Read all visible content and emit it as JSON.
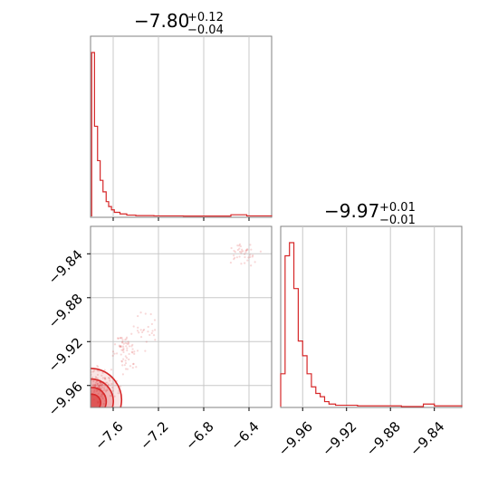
{
  "chart_data": [
    {
      "type": "histogram",
      "panel": "marginal-x",
      "title": {
        "main": "−7.80",
        "sup": "+0.12",
        "sub": "−0.04"
      },
      "color": "#d62728",
      "grid": true,
      "xlim": [
        -7.8,
        -6.2
      ],
      "bins": [
        {
          "x0": -7.79,
          "x1": -7.765,
          "h": 1.0
        },
        {
          "x0": -7.765,
          "x1": -7.738,
          "h": 0.55
        },
        {
          "x0": -7.738,
          "x1": -7.715,
          "h": 0.34
        },
        {
          "x0": -7.715,
          "x1": -7.69,
          "h": 0.22
        },
        {
          "x0": -7.69,
          "x1": -7.662,
          "h": 0.15
        },
        {
          "x0": -7.662,
          "x1": -7.64,
          "h": 0.09
        },
        {
          "x0": -7.64,
          "x1": -7.615,
          "h": 0.06
        },
        {
          "x0": -7.615,
          "x1": -7.59,
          "h": 0.04
        },
        {
          "x0": -7.59,
          "x1": -7.54,
          "h": 0.025
        },
        {
          "x0": -7.54,
          "x1": -7.48,
          "h": 0.015
        },
        {
          "x0": -7.48,
          "x1": -7.4,
          "h": 0.008
        },
        {
          "x0": -7.4,
          "x1": -7.24,
          "h": 0.005
        },
        {
          "x0": -7.24,
          "x1": -6.98,
          "h": 0.003
        },
        {
          "x0": -6.98,
          "x1": -6.56,
          "h": 0.002
        },
        {
          "x0": -6.56,
          "x1": -6.42,
          "h": 0.01
        },
        {
          "x0": -6.42,
          "x1": -6.2,
          "h": 0.003
        }
      ]
    },
    {
      "type": "histogram",
      "panel": "marginal-y",
      "title": {
        "main": "−9.97",
        "sup": "+0.01",
        "sub": "−0.01"
      },
      "color": "#d62728",
      "grid": true,
      "xlim": [
        -9.98,
        -9.815
      ],
      "xticks": [
        "−9.96",
        "−9.92",
        "−9.88",
        "−9.84"
      ],
      "bins": [
        {
          "x0": -9.98,
          "x1": -9.976,
          "h": 0.2
        },
        {
          "x0": -9.976,
          "x1": -9.972,
          "h": 0.92
        },
        {
          "x0": -9.972,
          "x1": -9.968,
          "h": 1.0
        },
        {
          "x0": -9.968,
          "x1": -9.964,
          "h": 0.72
        },
        {
          "x0": -9.964,
          "x1": -9.96,
          "h": 0.4
        },
        {
          "x0": -9.96,
          "x1": -9.956,
          "h": 0.31
        },
        {
          "x0": -9.956,
          "x1": -9.952,
          "h": 0.2
        },
        {
          "x0": -9.952,
          "x1": -9.948,
          "h": 0.12
        },
        {
          "x0": -9.948,
          "x1": -9.944,
          "h": 0.08
        },
        {
          "x0": -9.944,
          "x1": -9.94,
          "h": 0.06
        },
        {
          "x0": -9.94,
          "x1": -9.936,
          "h": 0.03
        },
        {
          "x0": -9.936,
          "x1": -9.93,
          "h": 0.015
        },
        {
          "x0": -9.93,
          "x1": -9.91,
          "h": 0.008
        },
        {
          "x0": -9.91,
          "x1": -9.87,
          "h": 0.004
        },
        {
          "x0": -9.87,
          "x1": -9.85,
          "h": 0.0
        },
        {
          "x0": -9.85,
          "x1": -9.84,
          "h": 0.015
        },
        {
          "x0": -9.84,
          "x1": -9.815,
          "h": 0.004
        }
      ]
    },
    {
      "type": "scatter",
      "panel": "joint",
      "color": "#d62728",
      "grid": true,
      "xlim": [
        -7.8,
        -6.2
      ],
      "ylim": [
        -9.98,
        -9.815
      ],
      "xticks": [
        "−7.6",
        "−7.2",
        "−6.8",
        "−6.4"
      ],
      "yticks": [
        "−9.84",
        "−9.88",
        "−9.92",
        "−9.96"
      ],
      "clusters": [
        {
          "x": -7.72,
          "y": -9.96,
          "sx": 0.06,
          "sy": 0.008,
          "n": 140
        },
        {
          "x": -7.5,
          "y": -9.93,
          "sx": 0.06,
          "sy": 0.01,
          "n": 70
        },
        {
          "x": -7.3,
          "y": -9.91,
          "sx": 0.05,
          "sy": 0.008,
          "n": 25
        },
        {
          "x": -6.46,
          "y": -9.84,
          "sx": 0.06,
          "sy": 0.005,
          "n": 40
        }
      ],
      "contours": [
        {
          "cx": -7.79,
          "cy": -9.972,
          "rx": 0.26,
          "ry": 0.028
        },
        {
          "cx": -7.79,
          "cy": -9.974,
          "rx": 0.19,
          "ry": 0.02
        },
        {
          "cx": -7.79,
          "cy": -9.975,
          "rx": 0.13,
          "ry": 0.013
        },
        {
          "cx": -7.79,
          "cy": -9.976,
          "rx": 0.08,
          "ry": 0.008
        }
      ]
    }
  ]
}
